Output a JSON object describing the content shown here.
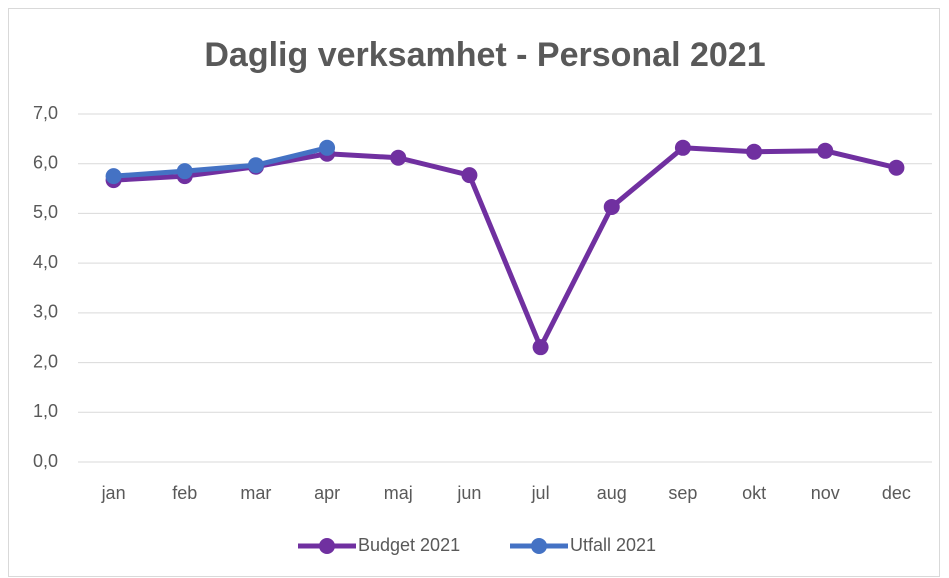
{
  "chart_data": {
    "type": "line",
    "title": "Daglig verksamhet -  Personal 2021",
    "categories": [
      "jan",
      "feb",
      "mar",
      "apr",
      "maj",
      "jun",
      "jul",
      "aug",
      "sep",
      "okt",
      "nov",
      "dec"
    ],
    "series": [
      {
        "name": "Budget 2021",
        "color": "#7030a0",
        "values": [
          5.67,
          5.75,
          5.94,
          6.2,
          6.12,
          5.77,
          2.31,
          5.13,
          6.32,
          6.24,
          6.26,
          5.92
        ]
      },
      {
        "name": "Utfall 2021",
        "color": "#4472c4",
        "values": [
          5.75,
          5.85,
          5.97,
          6.32,
          null,
          null,
          null,
          null,
          null,
          null,
          null,
          null
        ]
      }
    ],
    "ylim": [
      0,
      7
    ],
    "yticks": [
      {
        "value": 0,
        "label": "0,0"
      },
      {
        "value": 1,
        "label": "1,0"
      },
      {
        "value": 2,
        "label": "2,0"
      },
      {
        "value": 3,
        "label": "3,0"
      },
      {
        "value": 4,
        "label": "4,0"
      },
      {
        "value": 5,
        "label": "5,0"
      },
      {
        "value": 6,
        "label": "6,0"
      },
      {
        "value": 7,
        "label": "7,0"
      }
    ],
    "grid": true,
    "legend": "bottom"
  }
}
